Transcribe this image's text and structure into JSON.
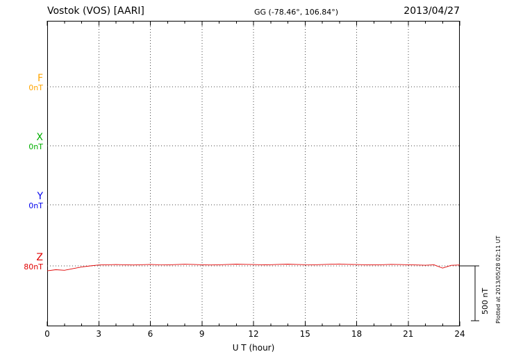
{
  "header": {
    "title": "Vostok (VOS)  [AARI]",
    "coords": "GG (-78.46°, 106.84°)",
    "date": "2013/04/27"
  },
  "axis": {
    "x_label": "U T (hour)",
    "x_ticks": [
      "0",
      "3",
      "6",
      "9",
      "12",
      "15",
      "18",
      "21",
      "24"
    ]
  },
  "components": [
    {
      "name": "F",
      "baseline_label": "0nT",
      "color": "#FFA500"
    },
    {
      "name": "X",
      "baseline_label": "0nT",
      "color": "#00AE00"
    },
    {
      "name": "Y",
      "baseline_label": "0nT",
      "color": "#0000EE"
    },
    {
      "name": "Z",
      "baseline_label": "80nT",
      "color": "#E00000"
    }
  ],
  "scale_bar": {
    "label": "500 nT",
    "span_nT": 500
  },
  "footer_note": "Plotted at 2013/05/28 02:11 UT",
  "chart_data": {
    "type": "line",
    "title": "Vostok (VOS) [AARI] magnetogram",
    "date": "2013/04/27",
    "xlabel": "U T (hour)",
    "x_range": [
      0,
      24
    ],
    "x_tick_step_hours": 3,
    "grid": "dotted",
    "units": "nT",
    "scale_bar_nT": 500,
    "baselines": [
      {
        "component": "F",
        "label": "0nT",
        "value_nT": 0
      },
      {
        "component": "X",
        "label": "0nT",
        "value_nT": 0
      },
      {
        "component": "Y",
        "label": "0nT",
        "value_nT": 0
      },
      {
        "component": "Z",
        "label": "80nT",
        "value_nT": 80
      }
    ],
    "series": [
      {
        "name": "Z",
        "color": "#E00000",
        "baseline_nT": 80,
        "x": [
          0,
          0.5,
          1,
          1.5,
          2,
          2.5,
          3,
          3.5,
          4,
          4.5,
          5,
          5.5,
          6,
          6.5,
          7,
          7.5,
          8,
          8.5,
          9,
          9.5,
          10,
          10.5,
          11,
          11.5,
          12,
          12.5,
          13,
          13.5,
          14,
          14.5,
          15,
          15.5,
          16,
          16.5,
          17,
          17.5,
          18,
          18.5,
          19,
          19.5,
          20,
          20.5,
          21,
          21.5,
          22,
          22.5,
          23,
          23.5,
          24
        ],
        "values": [
          35,
          45,
          40,
          55,
          70,
          80,
          88,
          90,
          92,
          90,
          88,
          91,
          93,
          90,
          89,
          92,
          95,
          93,
          90,
          88,
          90,
          93,
          96,
          94,
          92,
          90,
          91,
          94,
          96,
          93,
          91,
          90,
          92,
          95,
          97,
          94,
          92,
          90,
          89,
          91,
          94,
          92,
          90,
          88,
          86,
          90,
          60,
          85,
          88
        ]
      }
    ]
  }
}
